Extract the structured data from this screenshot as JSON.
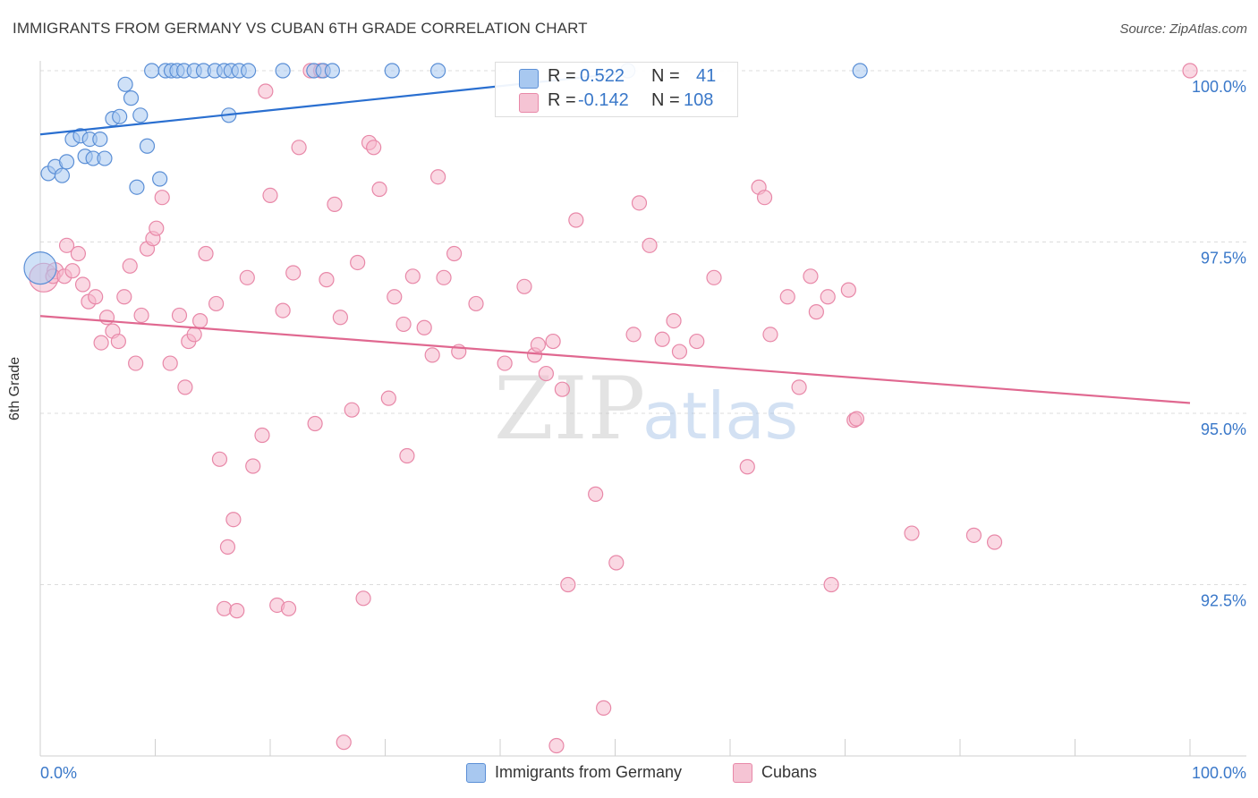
{
  "header": {
    "title": "IMMIGRANTS FROM GERMANY VS CUBAN 6TH GRADE CORRELATION CHART",
    "source": "Source: ZipAtlas.com"
  },
  "watermark": {
    "zip": "ZIP",
    "atlas": "atlas"
  },
  "legend_box": {
    "rows": [
      {
        "r_label": "R =",
        "r_value": "0.522",
        "n_label": "N =",
        "n_value": "41"
      },
      {
        "r_label": "R =",
        "r_value": "-0.142",
        "n_label": "N =",
        "n_value": "108"
      }
    ]
  },
  "bottom_legend": [
    {
      "label": "Immigrants from Germany"
    },
    {
      "label": "Cubans"
    }
  ],
  "colors": {
    "germany_fill": "#a8c8f0",
    "germany_stroke": "#5b8fd6",
    "germany_line": "#2a6fd0",
    "cuban_fill": "#f5b8cc",
    "cuban_stroke": "#e888a8",
    "cuban_line": "#e06890",
    "tick_text": "#3a78c9",
    "grid": "#dcdcdc"
  },
  "chart_data": {
    "type": "scatter",
    "title": "IMMIGRANTS FROM GERMANY VS CUBAN 6TH GRADE CORRELATION CHART",
    "xlabel": "",
    "ylabel": "6th Grade",
    "xlim": [
      0,
      100
    ],
    "ylim": [
      89.8,
      100.4
    ],
    "x_tick_labels": [
      "0.0%",
      "100.0%"
    ],
    "y_ticks": [
      {
        "value": 100.0,
        "label": "100.0%"
      },
      {
        "value": 97.5,
        "label": "97.5%"
      },
      {
        "value": 95.0,
        "label": "95.0%"
      },
      {
        "value": 92.5,
        "label": "92.5%"
      }
    ],
    "grid": true,
    "series": [
      {
        "name": "Immigrants from Germany",
        "R": 0.522,
        "N": 41,
        "trend": {
          "x": [
            0,
            50.5
          ],
          "y": [
            99.07,
            99.96
          ]
        },
        "points": [
          [
            0.0,
            97.12,
            18
          ],
          [
            0.7,
            98.5,
            8
          ],
          [
            1.3,
            98.6,
            8
          ],
          [
            1.9,
            98.47,
            8
          ],
          [
            2.3,
            98.67,
            8
          ],
          [
            2.8,
            99.0,
            8
          ],
          [
            3.5,
            99.05,
            8
          ],
          [
            3.9,
            98.75,
            8
          ],
          [
            4.3,
            99.0,
            8
          ],
          [
            4.6,
            98.72,
            8
          ],
          [
            5.2,
            99.0,
            8
          ],
          [
            5.6,
            98.72,
            8
          ],
          [
            6.3,
            99.3,
            8
          ],
          [
            6.9,
            99.33,
            8
          ],
          [
            7.4,
            99.8,
            8
          ],
          [
            7.9,
            99.6,
            8
          ],
          [
            8.4,
            98.3,
            8
          ],
          [
            8.7,
            99.35,
            8
          ],
          [
            9.3,
            98.9,
            8
          ],
          [
            10.4,
            98.42,
            8
          ],
          [
            9.7,
            100.0,
            8
          ],
          [
            10.9,
            100.0,
            8
          ],
          [
            11.4,
            100.0,
            8
          ],
          [
            11.9,
            100.0,
            8
          ],
          [
            12.5,
            100.0,
            8
          ],
          [
            13.4,
            100.0,
            8
          ],
          [
            14.2,
            100.0,
            8
          ],
          [
            15.2,
            100.0,
            8
          ],
          [
            16.0,
            100.0,
            8
          ],
          [
            16.6,
            100.0,
            8
          ],
          [
            16.4,
            99.35,
            8
          ],
          [
            17.3,
            100.0,
            8
          ],
          [
            18.1,
            100.0,
            8
          ],
          [
            21.1,
            100.0,
            8
          ],
          [
            23.8,
            100.0,
            8
          ],
          [
            24.6,
            100.0,
            8
          ],
          [
            25.4,
            100.0,
            8
          ],
          [
            30.6,
            100.0,
            8
          ],
          [
            34.6,
            100.0,
            8
          ],
          [
            51.1,
            100.0,
            8
          ],
          [
            71.3,
            100.0,
            8
          ]
        ]
      },
      {
        "name": "Cubans",
        "R": -0.142,
        "N": 108,
        "trend": {
          "x": [
            0,
            100
          ],
          "y": [
            96.42,
            95.15
          ]
        },
        "points": [
          [
            0.3,
            96.98,
            16
          ],
          [
            1.3,
            97.08,
            9
          ],
          [
            1.1,
            97.0,
            8
          ],
          [
            2.1,
            97.0,
            8
          ],
          [
            2.3,
            97.45,
            8
          ],
          [
            2.8,
            97.08,
            8
          ],
          [
            3.3,
            97.33,
            8
          ],
          [
            3.7,
            96.88,
            8
          ],
          [
            4.2,
            96.63,
            8
          ],
          [
            4.8,
            96.7,
            8
          ],
          [
            5.3,
            96.03,
            8
          ],
          [
            5.8,
            96.4,
            8
          ],
          [
            6.3,
            96.2,
            8
          ],
          [
            6.8,
            96.05,
            8
          ],
          [
            7.3,
            96.7,
            8
          ],
          [
            7.8,
            97.15,
            8
          ],
          [
            8.3,
            95.73,
            8
          ],
          [
            8.8,
            96.43,
            8
          ],
          [
            9.3,
            97.4,
            8
          ],
          [
            9.8,
            97.55,
            8
          ],
          [
            10.1,
            97.7,
            8
          ],
          [
            10.6,
            98.15,
            8
          ],
          [
            11.3,
            95.73,
            8
          ],
          [
            12.1,
            96.43,
            8
          ],
          [
            12.6,
            95.38,
            8
          ],
          [
            12.9,
            96.05,
            8
          ],
          [
            13.4,
            96.15,
            8
          ],
          [
            13.9,
            96.35,
            8
          ],
          [
            14.4,
            97.33,
            8
          ],
          [
            15.3,
            96.6,
            8
          ],
          [
            15.6,
            94.33,
            8
          ],
          [
            16.3,
            93.05,
            8
          ],
          [
            16.8,
            93.45,
            8
          ],
          [
            16.0,
            92.15,
            8
          ],
          [
            17.1,
            92.12,
            8
          ],
          [
            18.0,
            96.98,
            8
          ],
          [
            18.5,
            94.23,
            8
          ],
          [
            19.3,
            94.68,
            8
          ],
          [
            19.6,
            99.7,
            8
          ],
          [
            20.0,
            98.18,
            8
          ],
          [
            20.6,
            92.2,
            8
          ],
          [
            21.1,
            96.5,
            8
          ],
          [
            21.6,
            92.15,
            8
          ],
          [
            22.0,
            97.05,
            8
          ],
          [
            22.5,
            98.88,
            8
          ],
          [
            23.5,
            100.0,
            8
          ],
          [
            23.9,
            94.85,
            8
          ],
          [
            24.4,
            100.0,
            8
          ],
          [
            24.9,
            96.95,
            8
          ],
          [
            25.6,
            98.05,
            8
          ],
          [
            26.1,
            96.4,
            8
          ],
          [
            26.4,
            90.2,
            8
          ],
          [
            27.1,
            95.05,
            8
          ],
          [
            27.6,
            97.2,
            8
          ],
          [
            28.1,
            92.3,
            8
          ],
          [
            28.6,
            98.95,
            8
          ],
          [
            29.0,
            98.88,
            8
          ],
          [
            29.5,
            98.27,
            8
          ],
          [
            30.3,
            95.22,
            8
          ],
          [
            30.8,
            96.7,
            8
          ],
          [
            31.6,
            96.3,
            8
          ],
          [
            31.9,
            94.38,
            8
          ],
          [
            32.4,
            97.0,
            8
          ],
          [
            33.4,
            96.25,
            8
          ],
          [
            34.1,
            95.85,
            8
          ],
          [
            34.6,
            98.45,
            8
          ],
          [
            35.1,
            96.98,
            8
          ],
          [
            36.0,
            97.33,
            8
          ],
          [
            36.4,
            95.9,
            8
          ],
          [
            37.9,
            96.6,
            8
          ],
          [
            40.4,
            95.73,
            8
          ],
          [
            42.1,
            96.85,
            8
          ],
          [
            43.0,
            95.85,
            8
          ],
          [
            43.3,
            96.0,
            8
          ],
          [
            44.0,
            95.58,
            8
          ],
          [
            44.6,
            96.05,
            8
          ],
          [
            44.9,
            90.15,
            8
          ],
          [
            45.4,
            95.35,
            8
          ],
          [
            45.9,
            92.5,
            8
          ],
          [
            46.6,
            97.82,
            8
          ],
          [
            48.3,
            93.82,
            8
          ],
          [
            49.0,
            90.7,
            8
          ],
          [
            50.1,
            92.82,
            8
          ],
          [
            51.6,
            96.15,
            8
          ],
          [
            52.1,
            98.07,
            8
          ],
          [
            53.0,
            97.45,
            8
          ],
          [
            54.1,
            96.08,
            8
          ],
          [
            55.1,
            96.35,
            8
          ],
          [
            55.6,
            95.9,
            8
          ],
          [
            57.1,
            96.05,
            8
          ],
          [
            58.6,
            96.98,
            8
          ],
          [
            61.5,
            94.22,
            8
          ],
          [
            62.5,
            98.3,
            8
          ],
          [
            63.0,
            98.15,
            8
          ],
          [
            63.5,
            96.15,
            8
          ],
          [
            65.0,
            96.7,
            8
          ],
          [
            66.0,
            95.38,
            8
          ],
          [
            67.0,
            97.0,
            8
          ],
          [
            67.5,
            96.48,
            8
          ],
          [
            68.5,
            96.7,
            8
          ],
          [
            68.8,
            92.5,
            8
          ],
          [
            70.3,
            96.8,
            8
          ],
          [
            70.8,
            94.9,
            8
          ],
          [
            71.0,
            94.92,
            8
          ],
          [
            75.8,
            93.25,
            8
          ],
          [
            81.2,
            93.22,
            8
          ],
          [
            83.0,
            93.12,
            8
          ],
          [
            100.0,
            100.0,
            8
          ]
        ]
      }
    ]
  }
}
